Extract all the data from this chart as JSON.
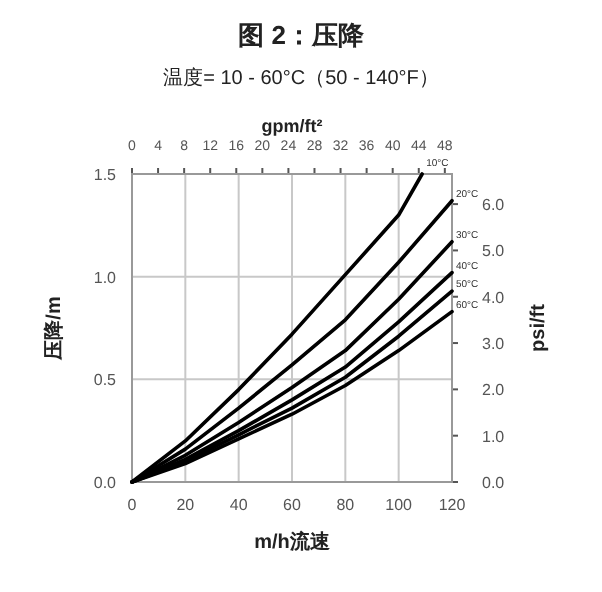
{
  "chart_data": {
    "type": "line",
    "title": "图 2：压降",
    "subtitle": "温度= 10 - 60°C（50 - 140°F）",
    "xlabel": "m/h流速",
    "ylabel": "压降/m",
    "y2label": "psi/ft",
    "x2label": "gpm/ft²",
    "xlim": [
      0,
      120
    ],
    "xticks": [
      0,
      20,
      40,
      60,
      80,
      100,
      120
    ],
    "ylim": [
      0,
      1.5
    ],
    "yticks": [
      {
        "value": 0,
        "label": "0.0"
      },
      {
        "value": 0.5,
        "label": "0.5"
      },
      {
        "value": 1,
        "label": "1.0"
      },
      {
        "value": 1.5,
        "label": "1.5"
      }
    ],
    "y2lim": [
      0,
      6.65
    ],
    "y2ticks": [
      {
        "value": 0,
        "label": "0.0"
      },
      {
        "value": 1,
        "label": "1.0"
      },
      {
        "value": 2,
        "label": "2.0"
      },
      {
        "value": 3,
        "label": "3.0"
      },
      {
        "value": 4,
        "label": "4.0"
      },
      {
        "value": 5,
        "label": "5.0"
      },
      {
        "value": 6,
        "label": "6.0"
      }
    ],
    "x2lim": [
      0,
      49.1
    ],
    "x2ticks": [
      0,
      4,
      8,
      12,
      16,
      20,
      24,
      28,
      32,
      36,
      40,
      44,
      48
    ],
    "grid": true,
    "series": [
      {
        "name": "10°C",
        "color": "#000000",
        "x": [
          0,
          20,
          40,
          60,
          80,
          100,
          108.8
        ],
        "values": [
          0,
          0.2,
          0.45,
          0.72,
          1.01,
          1.3,
          1.5
        ]
      },
      {
        "name": "20°C",
        "color": "#000000",
        "x": [
          0,
          20,
          40,
          60,
          80,
          100,
          120
        ],
        "values": [
          0,
          0.16,
          0.36,
          0.57,
          0.79,
          1.07,
          1.37
        ]
      },
      {
        "name": "30°C",
        "color": "#000000",
        "x": [
          0,
          20,
          40,
          60,
          80,
          100,
          120
        ],
        "values": [
          0,
          0.13,
          0.29,
          0.46,
          0.64,
          0.89,
          1.17
        ]
      },
      {
        "name": "40°C",
        "color": "#000000",
        "x": [
          0,
          20,
          40,
          60,
          80,
          100,
          120
        ],
        "values": [
          0,
          0.11,
          0.25,
          0.4,
          0.56,
          0.78,
          1.02
        ]
      },
      {
        "name": "50°C",
        "color": "#000000",
        "x": [
          0,
          20,
          40,
          60,
          80,
          100,
          120
        ],
        "values": [
          0,
          0.1,
          0.23,
          0.36,
          0.51,
          0.71,
          0.93
        ]
      },
      {
        "name": "60°C",
        "color": "#000000",
        "x": [
          0,
          20,
          40,
          60,
          80,
          100,
          120
        ],
        "values": [
          0,
          0.09,
          0.21,
          0.33,
          0.47,
          0.64,
          0.83
        ]
      }
    ]
  }
}
